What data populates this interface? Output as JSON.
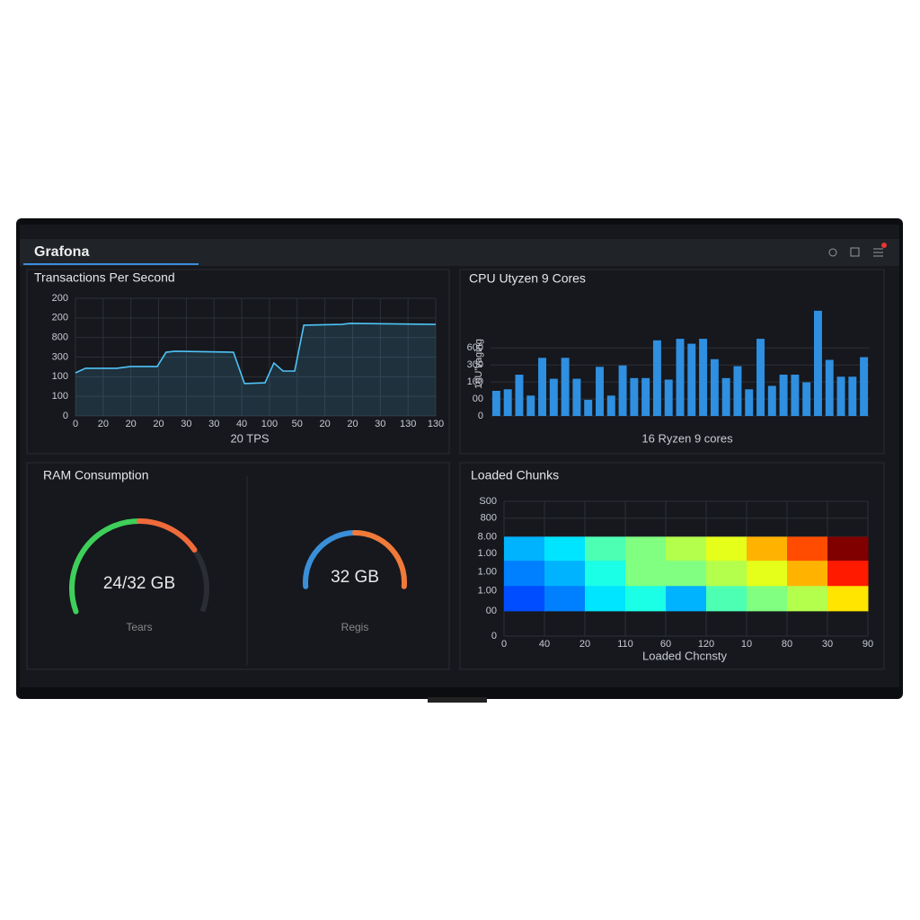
{
  "header": {
    "title": "Grafona"
  },
  "chart_data": [
    {
      "type": "line",
      "title": "Transactions Per Second",
      "xlabel": "20 TPS",
      "xlim": [
        0,
        130
      ],
      "ylim": [
        0,
        600
      ],
      "grid": true,
      "xticks": [
        0,
        {
          "value": 10,
          "label": "20"
        },
        20,
        {
          "value": 30,
          "label": "20"
        },
        {
          "value": 40,
          "label": "30"
        },
        {
          "value": 50,
          "label": "30"
        },
        {
          "value": 60,
          "label": "40"
        },
        {
          "value": 70,
          "label": "100"
        },
        {
          "value": 80,
          "label": "50"
        },
        {
          "value": 90,
          "label": "20"
        },
        {
          "value": 100,
          "label": "20"
        },
        {
          "value": 110,
          "label": "30"
        },
        {
          "value": 120,
          "label": "130"
        },
        {
          "value": 130,
          "label": "130"
        }
      ],
      "yticks": [
        0,
        100,
        {
          "value": 200,
          "label": "100"
        },
        300,
        {
          "value": 400,
          "label": "800"
        },
        {
          "value": 500,
          "label": "200"
        },
        {
          "value": 600,
          "label": "200"
        }
      ],
      "series": [
        {
          "color": "#4fc3f7",
          "x": [
            0,
            3.6,
            14.9,
            19.8,
            29.5,
            32.7,
            36,
            57,
            61,
            68.4,
            71.6,
            74.9,
            79.1,
            82.4,
            96,
            99.2,
            130
          ],
          "values": [
            220,
            243,
            243,
            252,
            252,
            325,
            330,
            325,
            165,
            169,
            270,
            229,
            229,
            463,
            467,
            472,
            467
          ]
        }
      ]
    },
    {
      "type": "bar",
      "title": "CPU Utyzen 9 Cores",
      "xlabel": "16 Ryzen 9 cores",
      "ylabel": "10U'Vaging",
      "ylim": [
        0,
        650
      ],
      "grid": true,
      "color": "#2f8fe0",
      "yticks": [
        0,
        {
          "value": 100,
          "label": "00"
        },
        {
          "value": 200,
          "label": "100"
        },
        300,
        {
          "value": 400,
          "label": "600"
        }
      ],
      "categories": [
        null,
        null,
        null,
        null,
        null,
        null,
        null,
        null,
        null,
        null,
        null,
        null,
        null,
        null,
        null,
        null,
        null,
        null,
        null,
        null,
        null,
        null,
        null,
        null,
        null,
        null,
        null,
        null,
        null,
        null,
        null,
        null,
        null
      ],
      "values": [
        148,
        157,
        243,
        120,
        342,
        219,
        342,
        219,
        95,
        289,
        120,
        297,
        223,
        223,
        445,
        214,
        454,
        425,
        454,
        334,
        223,
        293,
        157,
        454,
        177,
        243,
        243,
        198,
        619,
        330,
        231,
        231,
        346
      ]
    },
    {
      "type": "gauge",
      "title": "RAM Consumption",
      "gauges": [
        {
          "value": 24,
          "max": 32,
          "value_label": "24/32 GB",
          "caption": "Tears",
          "colors": [
            "#3ecf5a",
            "#f06a3a"
          ]
        },
        {
          "value": 32,
          "max": 32,
          "value_label": "32 GB",
          "caption": "Regis",
          "colors": [
            "#3a8fd9",
            "#f07a3a"
          ]
        }
      ]
    },
    {
      "type": "heatmap",
      "title": "Loaded Chunks",
      "xlabel": "Loaded Chcnsty",
      "xlim": [
        0,
        9
      ],
      "ylim": [
        0,
        8
      ],
      "grid": true,
      "xticks": [
        0,
        {
          "value": 1,
          "label": "40"
        },
        {
          "value": 2,
          "label": "20"
        },
        {
          "value": 3,
          "label": "110"
        },
        {
          "value": 4,
          "label": "60"
        },
        {
          "value": 5,
          "label": "120"
        },
        {
          "value": 6,
          "label": "10"
        },
        {
          "value": 7,
          "label": "80"
        },
        {
          "value": 8,
          "label": "30"
        },
        {
          "value": 9,
          "label": "90"
        }
      ],
      "yticks": [
        0,
        {
          "value": 1.5,
          "label": "00"
        },
        {
          "value": 2.7,
          "label": "1.00"
        },
        {
          "value": 3.8,
          "label": "1.00"
        },
        {
          "value": 4.9,
          "label": "1.00"
        },
        {
          "value": 5.9,
          "label": "8.00"
        },
        {
          "value": 7,
          "label": "800"
        },
        {
          "value": 8,
          "label": "S00"
        }
      ],
      "x_bins": [
        0,
        1,
        2,
        3,
        4,
        5,
        6,
        7,
        8,
        9
      ],
      "y_bins": [
        1.5,
        3,
        4.5,
        5.9
      ],
      "values": [
        [
          0.2,
          0.25,
          0.35,
          0.4,
          0.3,
          0.45,
          0.5,
          0.55,
          0.65
        ],
        [
          0.25,
          0.3,
          0.4,
          0.5,
          0.5,
          0.55,
          0.6,
          0.7,
          0.85
        ],
        [
          0.3,
          0.35,
          0.45,
          0.5,
          0.55,
          0.6,
          0.7,
          0.8,
          1.0
        ]
      ]
    }
  ]
}
